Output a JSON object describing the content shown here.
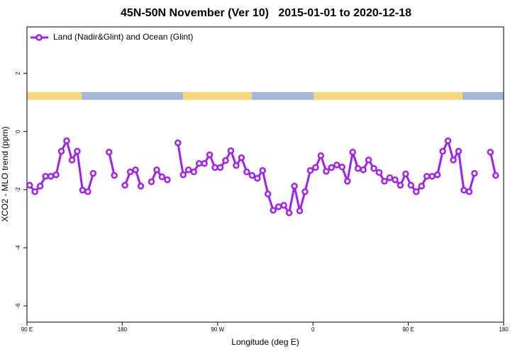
{
  "chart_data": {
    "type": "line",
    "title": "45N-50N November (Ver 10)   2015-01-01 to 2020-12-18",
    "x_label": "Longitude (deg E)",
    "y_label": "XCO2 - MLO trend (ppm)",
    "legend": "top-left",
    "xlim": [
      90,
      540
    ],
    "xticks": [
      {
        "value": 90,
        "label": "90 E"
      },
      180,
      {
        "value": 270,
        "label": "90 W"
      },
      {
        "value": 360,
        "label": "0"
      },
      {
        "value": 450,
        "label": "90 E"
      },
      {
        "value": 540,
        "label": "180"
      }
    ],
    "ylim": [
      -6.56,
      3.6
    ],
    "yticks": [
      -6,
      -4,
      -2,
      0,
      2
    ],
    "x": [
      92.5,
      97.5,
      102.5,
      107.5,
      112.5,
      117.5,
      122.5,
      127.5,
      132.5,
      137.5,
      142.5,
      147.5,
      152.5,
      157.5,
      162.5,
      167.5,
      172.5,
      177.5,
      182.5,
      187.5,
      192.5,
      197.5,
      202.5,
      207.5,
      212.5,
      217.5,
      222.5,
      227.5,
      232.5,
      237.5,
      242.5,
      247.5,
      252.5,
      257.5,
      262.5,
      267.5,
      272.5,
      277.5,
      282.5,
      287.5,
      292.5,
      297.5,
      302.5,
      307.5,
      312.5,
      317.5,
      322.5,
      327.5,
      332.5,
      337.5,
      342.5,
      347.5,
      352.5,
      357.5,
      362.5,
      367.5,
      372.5,
      377.5,
      382.5,
      387.5,
      392.5,
      397.5,
      402.5,
      407.5,
      412.5,
      417.5,
      422.5,
      427.5,
      432.5,
      437.5,
      442.5,
      447.5,
      452.5,
      457.5,
      462.5,
      467.5,
      472.5,
      477.5,
      482.5,
      487.5,
      492.5,
      497.5,
      502.5,
      507.5,
      512.5,
      517.5,
      522.5,
      527.5,
      532.5
    ],
    "series": [
      {
        "name": "Land (Nadir&Glint) and Ocean (Glint)",
        "color": "#a020f0",
        "values": [
          -1.85,
          -2.07,
          -1.88,
          -1.54,
          -1.54,
          -1.49,
          -0.68,
          -0.32,
          -0.98,
          -0.68,
          -2.02,
          -2.07,
          -1.44,
          null,
          null,
          -0.71,
          -1.51,
          null,
          -1.85,
          -1.39,
          -1.32,
          -1.88,
          null,
          -1.73,
          -1.32,
          -1.56,
          -1.66,
          null,
          -0.39,
          -1.49,
          -1.32,
          -1.39,
          -1.1,
          -1.1,
          -0.8,
          -1.24,
          -1.24,
          -1.0,
          -0.66,
          -1.17,
          -0.9,
          -1.39,
          -1.51,
          -1.61,
          -1.34,
          -2.15,
          -2.71,
          -2.59,
          -2.54,
          -2.8,
          -1.88,
          -2.73,
          -2.07,
          -1.34,
          -1.24,
          -0.83,
          -1.37,
          -1.24,
          -1.15,
          -1.22,
          -1.71,
          -0.71,
          -1.27,
          -1.32,
          -0.98,
          -1.27,
          -1.41,
          -1.71,
          -1.59,
          -1.66,
          -1.85,
          -1.46,
          -1.85,
          -2.07,
          -1.88,
          -1.54,
          -1.54,
          -1.49,
          -0.68,
          -0.32,
          -0.98,
          -0.68,
          -2.02,
          -2.07,
          -1.44,
          null,
          null,
          -0.71,
          -1.51
        ]
      }
    ]
  }
}
